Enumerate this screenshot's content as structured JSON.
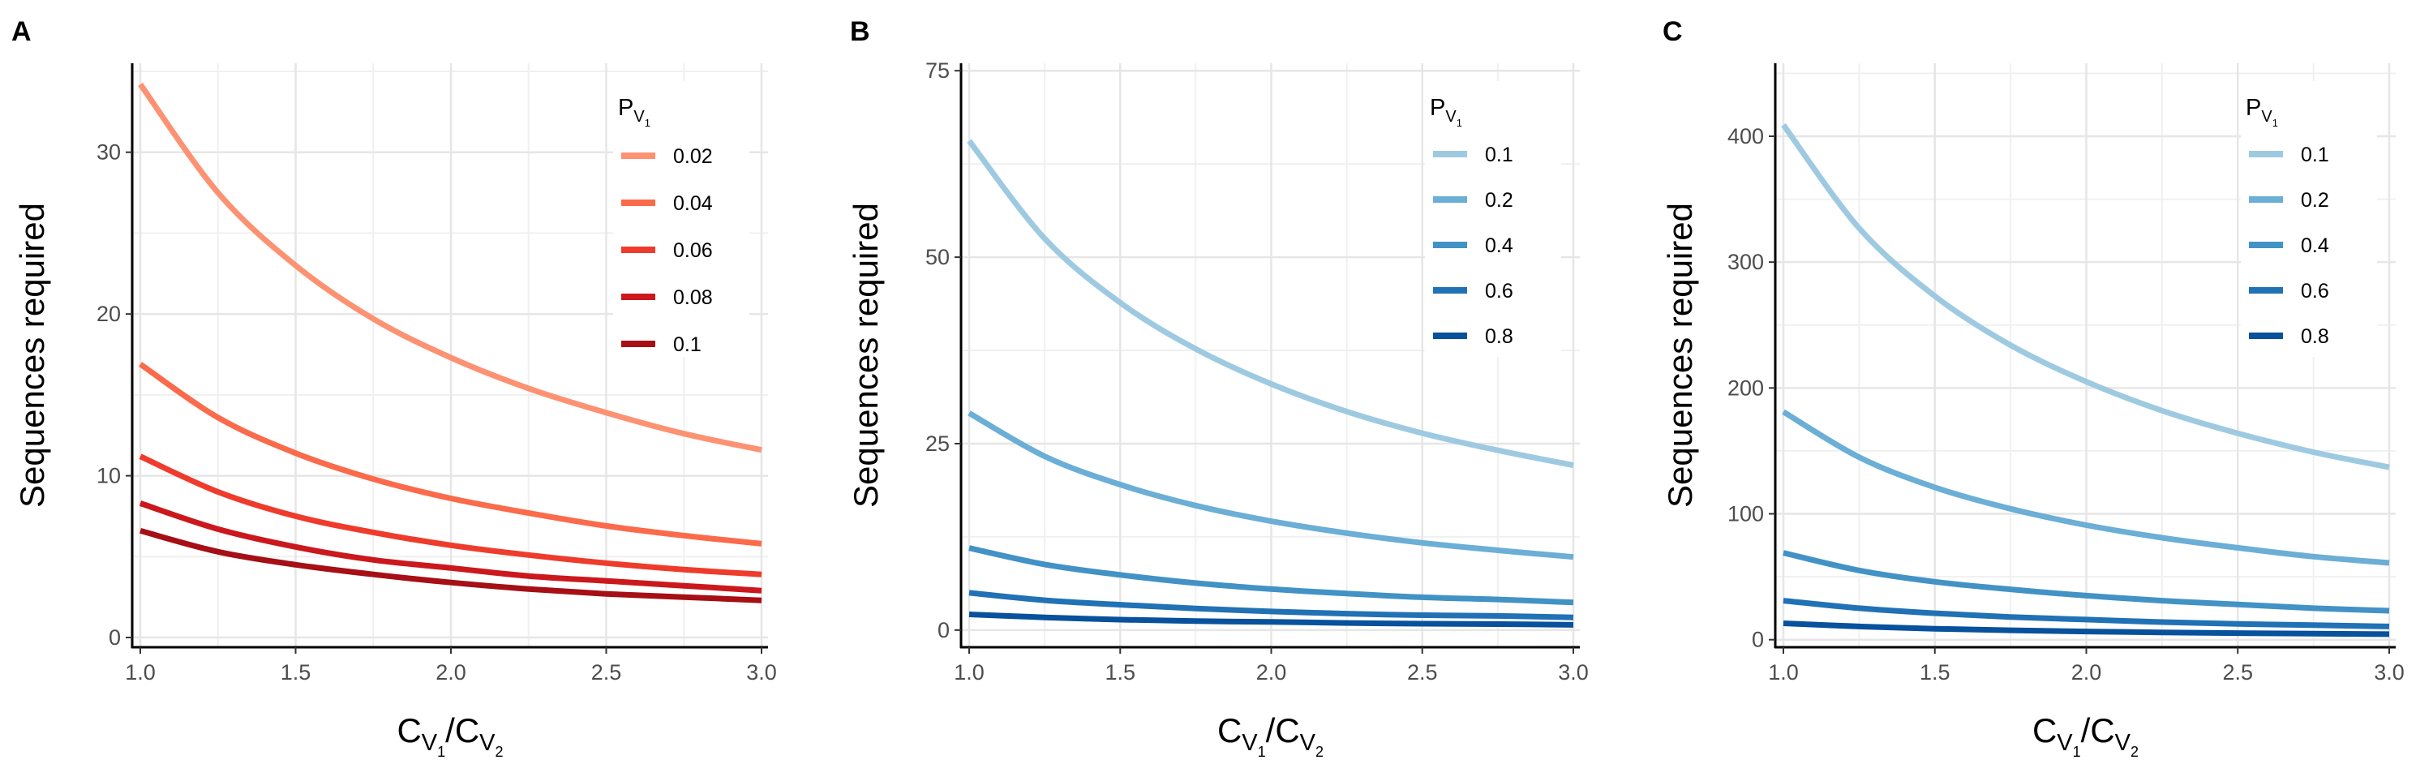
{
  "chart_data": [
    {
      "panel": "A",
      "type": "line",
      "ylabel": "Sequences required",
      "xlabel": {
        "base": "C",
        "sub": "V",
        "subsub": "1",
        "sep": "/",
        "base2": "C",
        "sub2": "V",
        "subsub2": "2"
      },
      "xlim": [
        1.0,
        3.0
      ],
      "ylim": [
        -0.6,
        35.5
      ],
      "xticks": [
        1.0,
        1.5,
        2.0,
        2.5,
        3.0
      ],
      "xtick_labels": [
        "1.0",
        "1.5",
        "2.0",
        "2.5",
        "3.0"
      ],
      "yticks": [
        0,
        10,
        20,
        30
      ],
      "ytick_labels": [
        "0",
        "10",
        "20",
        "30"
      ],
      "grid": true,
      "legend": {
        "title_base": "P",
        "title_sub": "V",
        "title_subsub": "1",
        "placement": "top-right"
      },
      "series": [
        {
          "name": "0.02",
          "color": "#fc9272",
          "x": [
            1.0,
            1.25,
            1.5,
            1.75,
            2.0,
            2.25,
            2.5,
            2.75,
            3.0
          ],
          "y": [
            34.2,
            27.5,
            23.0,
            19.7,
            17.3,
            15.4,
            13.9,
            12.6,
            11.6
          ]
        },
        {
          "name": "0.04",
          "color": "#fb6a4a",
          "x": [
            1.0,
            1.25,
            1.5,
            1.75,
            2.0,
            2.25,
            2.5,
            2.75,
            3.0
          ],
          "y": [
            16.9,
            13.6,
            11.4,
            9.8,
            8.6,
            7.7,
            6.9,
            6.3,
            5.8
          ]
        },
        {
          "name": "0.06",
          "color": "#ef3b2c",
          "x": [
            1.0,
            1.25,
            1.5,
            1.75,
            2.0,
            2.25,
            2.5,
            2.75,
            3.0
          ],
          "y": [
            11.2,
            9.0,
            7.5,
            6.5,
            5.7,
            5.1,
            4.6,
            4.2,
            3.9
          ]
        },
        {
          "name": "0.08",
          "color": "#cb181d",
          "x": [
            1.0,
            1.25,
            1.5,
            1.75,
            2.0,
            2.25,
            2.5,
            2.75,
            3.0
          ],
          "y": [
            8.3,
            6.7,
            5.6,
            4.8,
            4.3,
            3.8,
            3.5,
            3.2,
            2.9
          ]
        },
        {
          "name": "0.1",
          "color": "#a50f15",
          "x": [
            1.0,
            1.25,
            1.5,
            1.75,
            2.0,
            2.25,
            2.5,
            2.75,
            3.0
          ],
          "y": [
            6.6,
            5.3,
            4.5,
            3.9,
            3.4,
            3.0,
            2.7,
            2.5,
            2.3
          ]
        }
      ]
    },
    {
      "panel": "B",
      "type": "line",
      "ylabel": "Sequences required",
      "xlabel": {
        "base": "C",
        "sub": "V",
        "subsub": "1",
        "sep": "/",
        "base2": "C",
        "sub2": "V",
        "subsub2": "2"
      },
      "xlim": [
        1.0,
        3.0
      ],
      "ylim": [
        -2.3,
        76.0
      ],
      "xticks": [
        1.0,
        1.5,
        2.0,
        2.5,
        3.0
      ],
      "xtick_labels": [
        "1.0",
        "1.5",
        "2.0",
        "2.5",
        "3.0"
      ],
      "yticks": [
        0,
        25,
        50,
        75
      ],
      "ytick_labels": [
        "0",
        "25",
        "50",
        "75"
      ],
      "grid": true,
      "legend": {
        "title_base": "P",
        "title_sub": "V",
        "title_subsub": "1",
        "placement": "top-right"
      },
      "series": [
        {
          "name": "0.1",
          "color": "#9ecae1",
          "x": [
            1.0,
            1.25,
            1.5,
            1.75,
            2.0,
            2.25,
            2.5,
            2.75,
            3.0
          ],
          "y": [
            65.6,
            52.5,
            43.9,
            37.7,
            33.0,
            29.3,
            26.4,
            24.1,
            22.1
          ]
        },
        {
          "name": "0.2",
          "color": "#6baed6",
          "x": [
            1.0,
            1.25,
            1.5,
            1.75,
            2.0,
            2.25,
            2.5,
            2.75,
            3.0
          ],
          "y": [
            29.1,
            23.3,
            19.5,
            16.7,
            14.6,
            13.0,
            11.7,
            10.7,
            9.8
          ]
        },
        {
          "name": "0.4",
          "color": "#4292c6",
          "x": [
            1.0,
            1.25,
            1.5,
            1.75,
            2.0,
            2.25,
            2.5,
            2.75,
            3.0
          ],
          "y": [
            11.0,
            8.8,
            7.4,
            6.3,
            5.5,
            4.9,
            4.4,
            4.1,
            3.7
          ]
        },
        {
          "name": "0.6",
          "color": "#2171b5",
          "x": [
            1.0,
            1.25,
            1.5,
            1.75,
            2.0,
            2.25,
            2.5,
            2.75,
            3.0
          ],
          "y": [
            5.0,
            4.0,
            3.4,
            2.9,
            2.5,
            2.2,
            2.0,
            1.9,
            1.7
          ]
        },
        {
          "name": "0.8",
          "color": "#08519c",
          "x": [
            1.0,
            1.25,
            1.5,
            1.75,
            2.0,
            2.25,
            2.5,
            2.75,
            3.0
          ],
          "y": [
            2.1,
            1.7,
            1.4,
            1.2,
            1.1,
            0.95,
            0.85,
            0.8,
            0.7
          ]
        }
      ]
    },
    {
      "panel": "C",
      "type": "line",
      "ylabel": "Sequences required",
      "xlabel": {
        "base": "C",
        "sub": "V",
        "subsub": "1",
        "sep": "/",
        "base2": "C",
        "sub2": "V",
        "subsub2": "2"
      },
      "xlim": [
        1.0,
        3.0
      ],
      "ylim": [
        -6.0,
        458.0
      ],
      "xticks": [
        1.0,
        1.5,
        2.0,
        2.5,
        3.0
      ],
      "xtick_labels": [
        "1.0",
        "1.5",
        "2.0",
        "2.5",
        "3.0"
      ],
      "yticks": [
        0,
        100,
        200,
        300,
        400
      ],
      "ytick_labels": [
        "0",
        "100",
        "200",
        "300",
        "400"
      ],
      "grid": true,
      "legend": {
        "title_base": "P",
        "title_sub": "V",
        "title_subsub": "1",
        "placement": "top-right"
      },
      "series": [
        {
          "name": "0.1",
          "color": "#9ecae1",
          "x": [
            1.0,
            1.25,
            1.5,
            1.75,
            2.0,
            2.25,
            2.5,
            2.75,
            3.0
          ],
          "y": [
            409,
            327,
            273,
            234,
            205,
            182,
            164,
            149,
            137
          ]
        },
        {
          "name": "0.2",
          "color": "#6baed6",
          "x": [
            1.0,
            1.25,
            1.5,
            1.75,
            2.0,
            2.25,
            2.5,
            2.75,
            3.0
          ],
          "y": [
            181,
            145,
            121,
            104,
            91,
            81,
            73,
            66,
            61
          ]
        },
        {
          "name": "0.4",
          "color": "#4292c6",
          "x": [
            1.0,
            1.25,
            1.5,
            1.75,
            2.0,
            2.25,
            2.5,
            2.75,
            3.0
          ],
          "y": [
            69,
            55,
            46,
            40,
            35,
            31,
            28,
            25,
            23
          ]
        },
        {
          "name": "0.6",
          "color": "#2171b5",
          "x": [
            1.0,
            1.25,
            1.5,
            1.75,
            2.0,
            2.25,
            2.5,
            2.75,
            3.0
          ],
          "y": [
            31,
            25,
            21,
            18,
            16,
            14,
            12.5,
            11.5,
            10.5
          ]
        },
        {
          "name": "0.8",
          "color": "#08519c",
          "x": [
            1.0,
            1.25,
            1.5,
            1.75,
            2.0,
            2.25,
            2.5,
            2.75,
            3.0
          ],
          "y": [
            13,
            10.5,
            8.7,
            7.5,
            6.5,
            5.8,
            5.2,
            4.8,
            4.4
          ]
        }
      ]
    }
  ]
}
